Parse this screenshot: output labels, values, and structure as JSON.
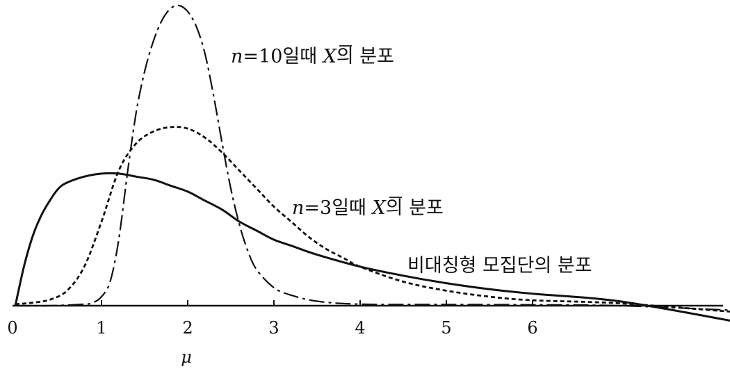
{
  "chart_data": {
    "type": "line",
    "xlabel": "μ",
    "x_ticks": [
      "0",
      "1",
      "2",
      "3",
      "4",
      "5",
      "6"
    ],
    "xlim": [
      0,
      8.4
    ],
    "ylim": [
      0,
      1.0
    ],
    "grid": false,
    "series": [
      {
        "key": "pop",
        "name": "비대칭형 모집단의 분포",
        "line_style": "solid",
        "x": [
          0,
          0.1,
          0.2,
          0.3,
          0.4,
          0.5,
          0.6,
          0.8,
          1.0,
          1.2,
          1.4,
          1.6,
          1.8,
          2.0,
          2.2,
          2.4,
          2.6,
          2.8,
          3.0,
          3.2,
          3.5,
          4.0,
          4.5,
          5.0,
          5.5,
          6.0,
          7.0,
          8.3
        ],
        "y": [
          0,
          0.13,
          0.23,
          0.3,
          0.35,
          0.39,
          0.41,
          0.43,
          0.44,
          0.44,
          0.43,
          0.42,
          0.4,
          0.38,
          0.35,
          0.32,
          0.28,
          0.25,
          0.22,
          0.2,
          0.17,
          0.13,
          0.1,
          0.075,
          0.055,
          0.04,
          0.015,
          -0.05
        ]
      },
      {
        "key": "n3",
        "name_parts": [
          "n",
          "=3일때 ",
          "X",
          "의 분포"
        ],
        "line_style": "dashed",
        "x": [
          0,
          0.2,
          0.4,
          0.6,
          0.8,
          1.0,
          1.2,
          1.4,
          1.6,
          1.8,
          2.0,
          2.2,
          2.4,
          2.6,
          2.8,
          3.0,
          3.2,
          3.4,
          3.6,
          3.8,
          4.0,
          4.5,
          5.0,
          5.5,
          6.0,
          7.0,
          8.3
        ],
        "y": [
          0.005,
          0.01,
          0.02,
          0.05,
          0.13,
          0.28,
          0.45,
          0.54,
          0.58,
          0.595,
          0.59,
          0.56,
          0.51,
          0.45,
          0.39,
          0.33,
          0.28,
          0.23,
          0.19,
          0.16,
          0.13,
          0.08,
          0.05,
          0.03,
          0.018,
          0.008,
          -0.02
        ]
      },
      {
        "key": "n10",
        "name_parts": [
          "n",
          "=10일때 ",
          "X",
          "의 분포"
        ],
        "line_style": "dashdot",
        "x": [
          0,
          0.4,
          0.8,
          0.9,
          1.0,
          1.1,
          1.2,
          1.3,
          1.4,
          1.5,
          1.6,
          1.7,
          1.8,
          1.9,
          2.0,
          2.1,
          2.2,
          2.3,
          2.4,
          2.5,
          2.6,
          2.7,
          2.8,
          3.0,
          3.2,
          3.5,
          4.0,
          5.0,
          6.0,
          7.0,
          8.3
        ],
        "y": [
          0,
          0,
          0.005,
          0.01,
          0.03,
          0.08,
          0.22,
          0.44,
          0.64,
          0.78,
          0.88,
          0.95,
          0.99,
          1.0,
          0.98,
          0.93,
          0.84,
          0.7,
          0.54,
          0.39,
          0.27,
          0.18,
          0.12,
          0.06,
          0.035,
          0.015,
          0.005,
          0.004,
          0.003,
          0.0,
          -0.015
        ]
      }
    ]
  }
}
